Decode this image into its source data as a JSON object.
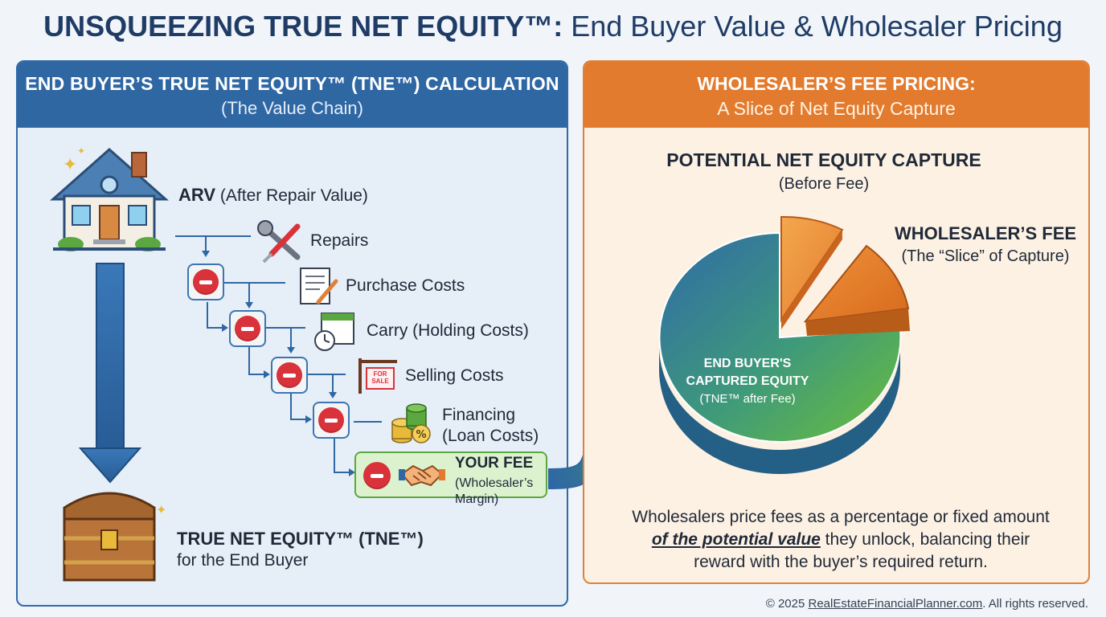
{
  "title": {
    "bold": "UNSQUEEZING TRUE NET EQUITY™:",
    "rest": "End Buyer Value & Wholesaler Pricing"
  },
  "left": {
    "heading": "END BUYER’S TRUE NET EQUITY™ (TNE™) CALCULATION",
    "subheading": "(The Value Chain)",
    "arv_bold": "ARV",
    "arv_rest": "(After Repair Value)",
    "steps": [
      {
        "label": "Repairs",
        "icon": "wrench-screwdriver-icon"
      },
      {
        "label": "Purchase Costs",
        "icon": "document-pen-icon"
      },
      {
        "label": "Carry (Holding Costs)",
        "icon": "calendar-clock-icon"
      },
      {
        "label": "Selling Costs",
        "icon": "for-sale-sign-icon"
      },
      {
        "label": "Financing",
        "label2": "(Loan Costs)",
        "icon": "coins-percent-icon"
      }
    ],
    "fee": {
      "title": "YOUR FEE",
      "line1": "(Wholesaler’s",
      "line2": "Margin)",
      "icon": "handshake-icon"
    },
    "sale_sign": {
      "line1": "FOR",
      "line2": "SALE"
    },
    "tne_title": "TRUE NET EQUITY™ (TNE™)",
    "tne_sub": "for the End Buyer"
  },
  "right": {
    "heading": "WHOLESALER’S FEE PRICING:",
    "subheading": "A Slice of Net Equity Capture",
    "capture_title": "POTENTIAL NET EQUITY CAPTURE",
    "capture_sub": "(Before Fee)",
    "fee_title": "WHOLESALER’S FEE",
    "fee_sub": "(The “Slice” of Capture)",
    "pie_line1": "END BUYER'S",
    "pie_line2": "CAPTURED EQUITY",
    "pie_line3": "(TNE™ after Fee)",
    "desc_line1": "Wholesalers price fees as a percentage or fixed amount",
    "desc_emph": "of the potential value",
    "desc_line2_rest": " they unlock, balancing their",
    "desc_line3": "reward with the buyer’s required return."
  },
  "footer": {
    "prefix": "© 2025 ",
    "link": "RealEstateFinancialPlanner.com",
    "suffix": ". All rights reserved."
  },
  "colors": {
    "blue": "#2f67a3",
    "orange": "#e27b2e",
    "red": "#d9323a",
    "green": "#5aa83f"
  }
}
